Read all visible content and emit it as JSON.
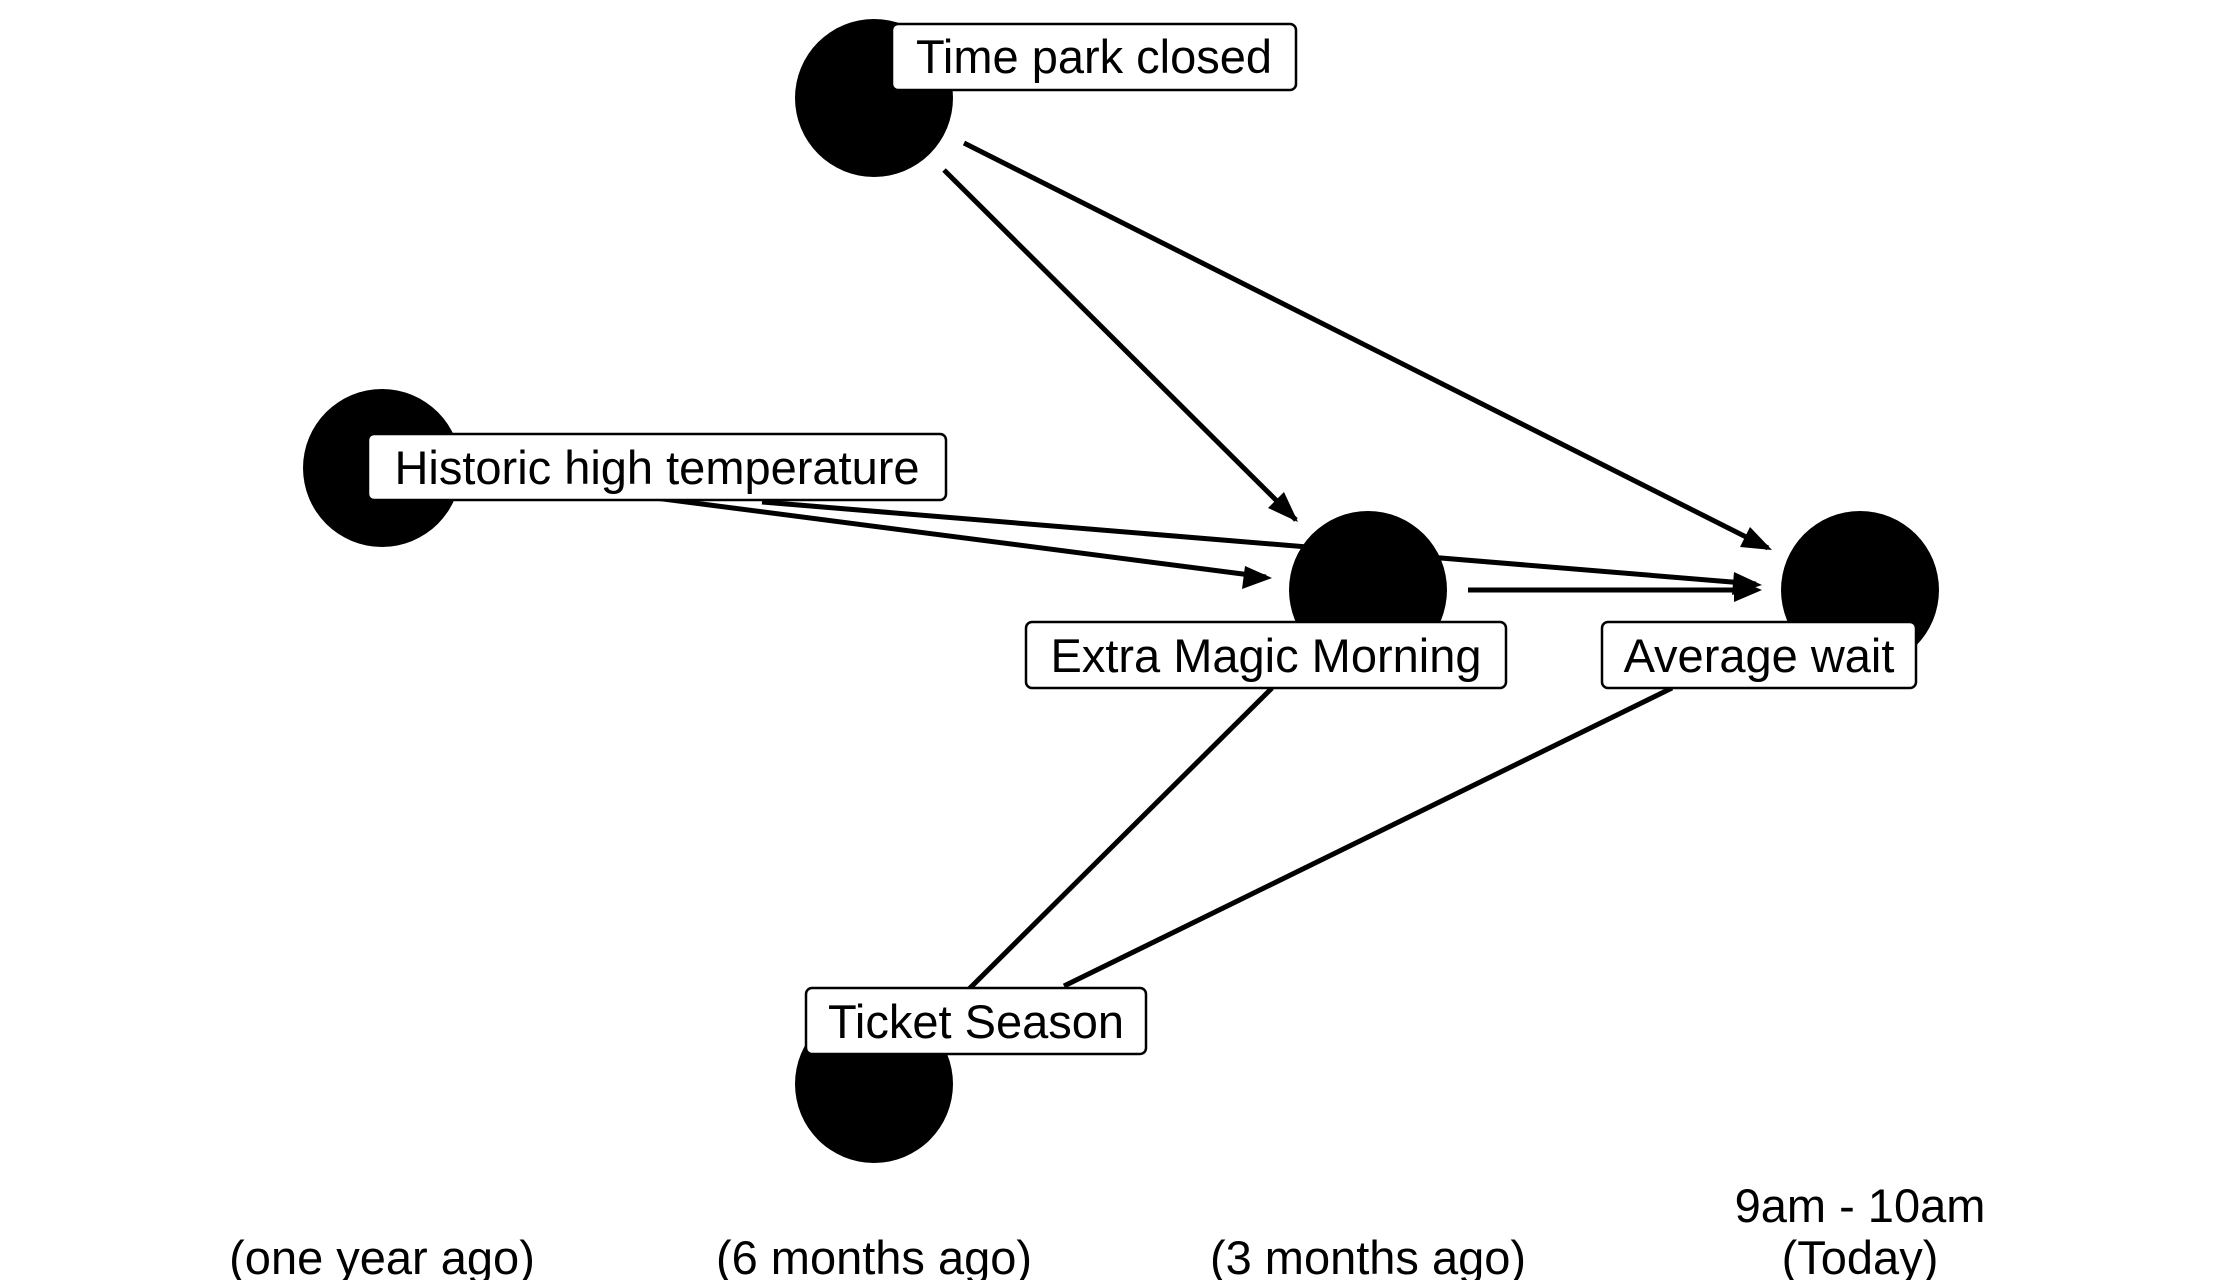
{
  "diagram": {
    "nodes": [
      {
        "id": "park_close",
        "label": "Time park closed"
      },
      {
        "id": "park_temp_high",
        "label": "Historic high temperature"
      },
      {
        "id": "park_extra_magic_morning",
        "label": "Extra Magic Morning"
      },
      {
        "id": "wait_minutes_posted_avg",
        "label": "Average wait"
      },
      {
        "id": "park_ticket_season",
        "label": "Ticket Season"
      }
    ],
    "edges": [
      {
        "from": "park_close",
        "to": "park_extra_magic_morning",
        "arrow": true
      },
      {
        "from": "park_close",
        "to": "wait_minutes_posted_avg",
        "arrow": true
      },
      {
        "from": "park_temp_high",
        "to": "park_extra_magic_morning",
        "arrow": true
      },
      {
        "from": "park_temp_high",
        "to": "wait_minutes_posted_avg",
        "arrow": true
      },
      {
        "from": "park_extra_magic_morning",
        "to": "wait_minutes_posted_avg",
        "arrow": true
      },
      {
        "from": "park_ticket_season",
        "to": "park_extra_magic_morning",
        "arrow": false
      },
      {
        "from": "park_ticket_season",
        "to": "wait_minutes_posted_avg",
        "arrow": false
      }
    ],
    "time_labels": [
      {
        "lines": [
          "(one year ago)"
        ]
      },
      {
        "lines": [
          "(6 months ago)"
        ]
      },
      {
        "lines": [
          "(3 months ago)"
        ]
      },
      {
        "lines": [
          "9am - 10am",
          "(Today)"
        ]
      }
    ]
  }
}
